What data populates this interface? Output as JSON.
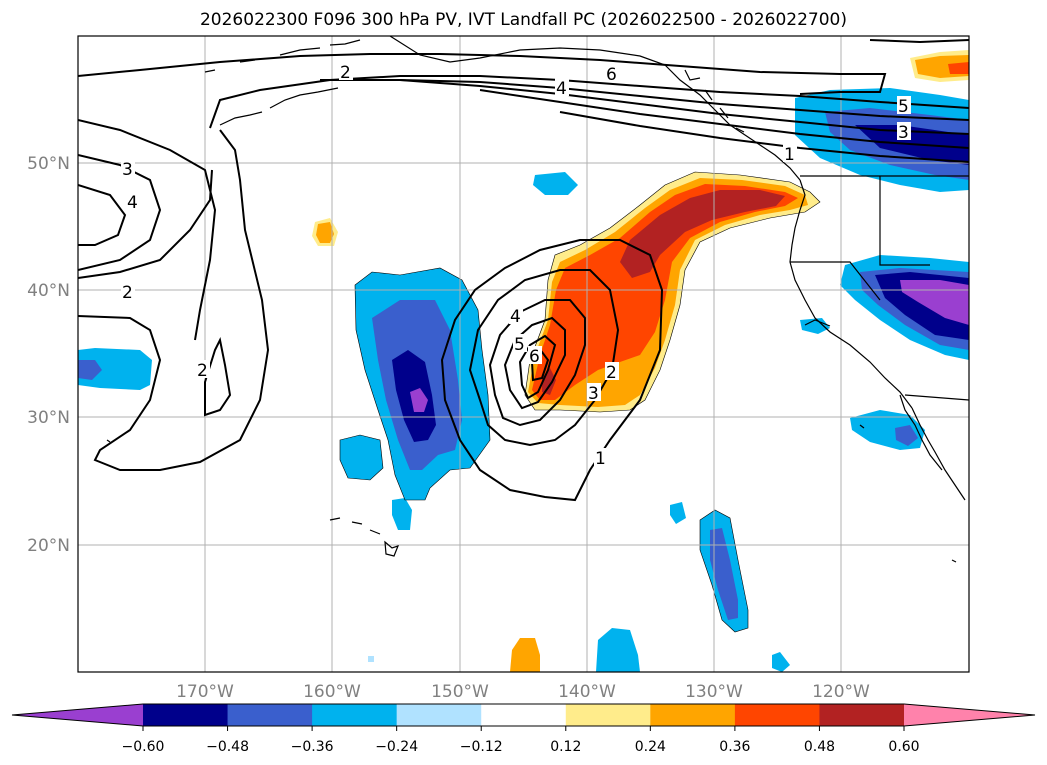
{
  "title": "2026022300 F096 300 hPa PV, IVT Landfall PC (2026022500 - 2026022700)",
  "latitude_labels": [
    "50°N",
    "40°N",
    "30°N",
    "20°N"
  ],
  "longitude_labels": [
    "170°W",
    "160°W",
    "150°W",
    "140°W",
    "130°W",
    "120°W"
  ],
  "contour_labels": [
    "2",
    "3",
    "4",
    "2",
    "2",
    "6",
    "4",
    "5",
    "3",
    "1",
    "4",
    "5",
    "6",
    "3",
    "2",
    "1"
  ],
  "colorbar": {
    "tick_labels": [
      "−0.60",
      "−0.48",
      "−0.36",
      "−0.24",
      "−0.12",
      "0.12",
      "0.24",
      "0.36",
      "0.48",
      "0.60"
    ],
    "colors": [
      "#9a3fd0",
      "#00008b",
      "#3a5fcd",
      "#00b2ee",
      "#b0e2ff",
      "#ffffff",
      "#ffec8b",
      "#ffa500",
      "#ff4500",
      "#b22222",
      "#ff82ab"
    ]
  }
}
